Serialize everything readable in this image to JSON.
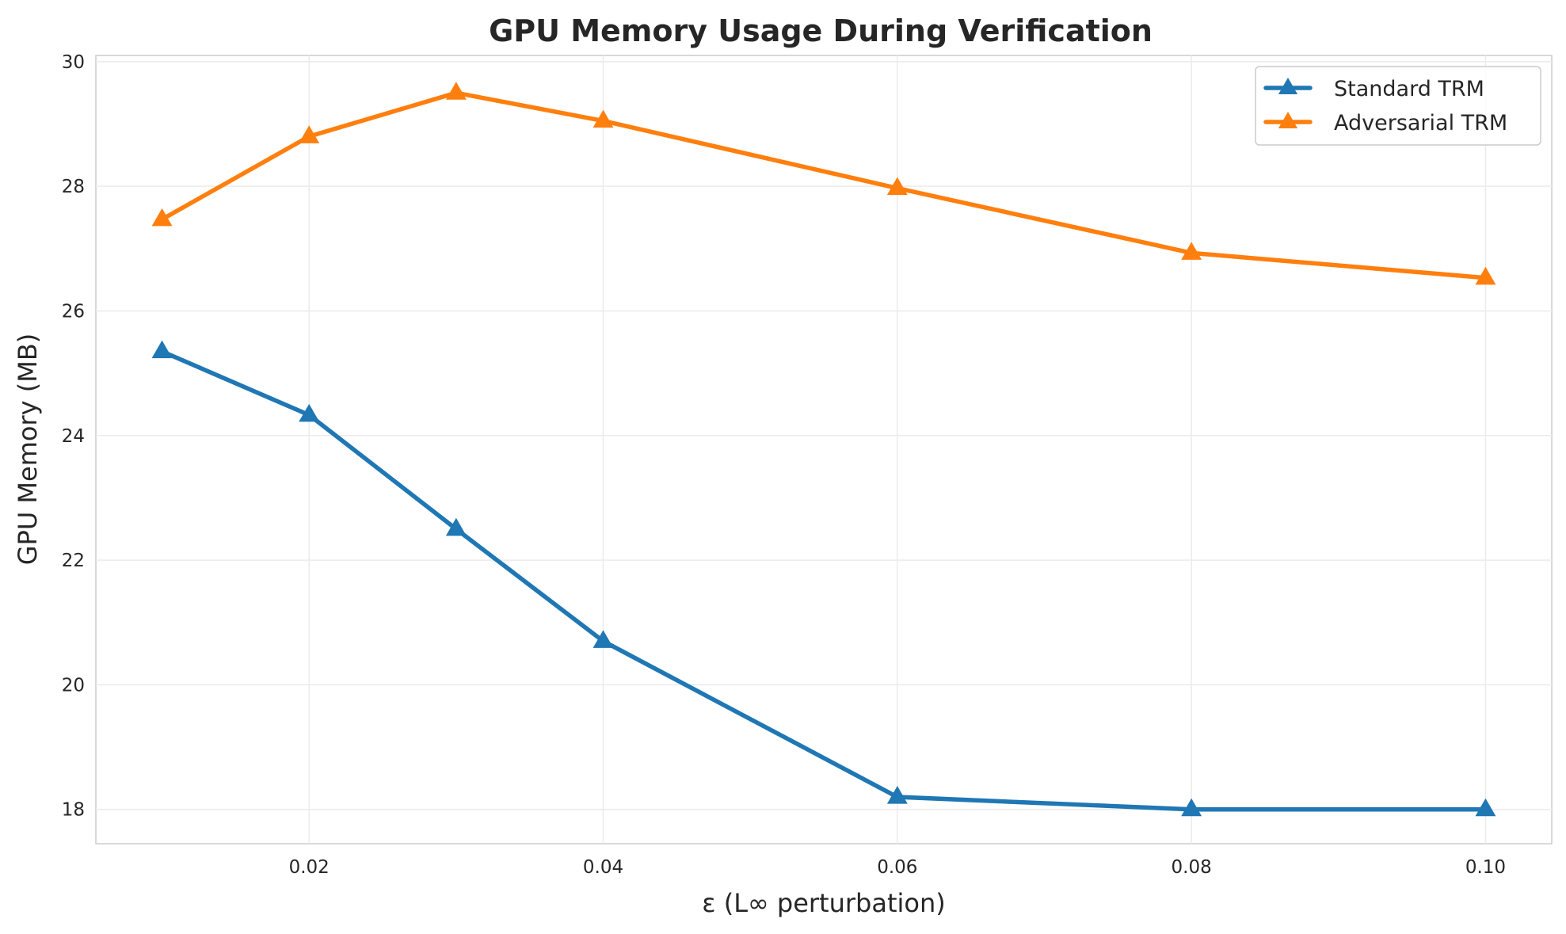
{
  "chart_data": {
    "type": "line",
    "title": "GPU Memory Usage During Verification",
    "xlabel": "ε (L∞ perturbation)",
    "ylabel": "GPU Memory (MB)",
    "xlim": [
      0.0055,
      0.1045
    ],
    "ylim": [
      17.45,
      30.1
    ],
    "x_ticks": [
      0.02,
      0.04,
      0.06,
      0.08,
      0.1
    ],
    "x_tick_labels": [
      "0.02",
      "0.04",
      "0.06",
      "0.08",
      "0.10"
    ],
    "y_ticks": [
      18,
      20,
      22,
      24,
      26,
      28,
      30
    ],
    "y_tick_labels": [
      "18",
      "20",
      "22",
      "24",
      "26",
      "28",
      "30"
    ],
    "grid": true,
    "legend_position": "top-right",
    "x": [
      0.01,
      0.02,
      0.03,
      0.04,
      0.06,
      0.08,
      0.1
    ],
    "series": [
      {
        "name": "Standard TRM",
        "color": "#1f77b4",
        "marker": "triangle",
        "values": [
          25.35,
          24.33,
          22.5,
          20.7,
          18.2,
          18.0,
          18.0
        ]
      },
      {
        "name": "Adversarial TRM",
        "color": "#ff7f0e",
        "marker": "triangle",
        "values": [
          27.47,
          28.8,
          29.5,
          29.05,
          27.97,
          26.93,
          26.53
        ]
      }
    ]
  }
}
